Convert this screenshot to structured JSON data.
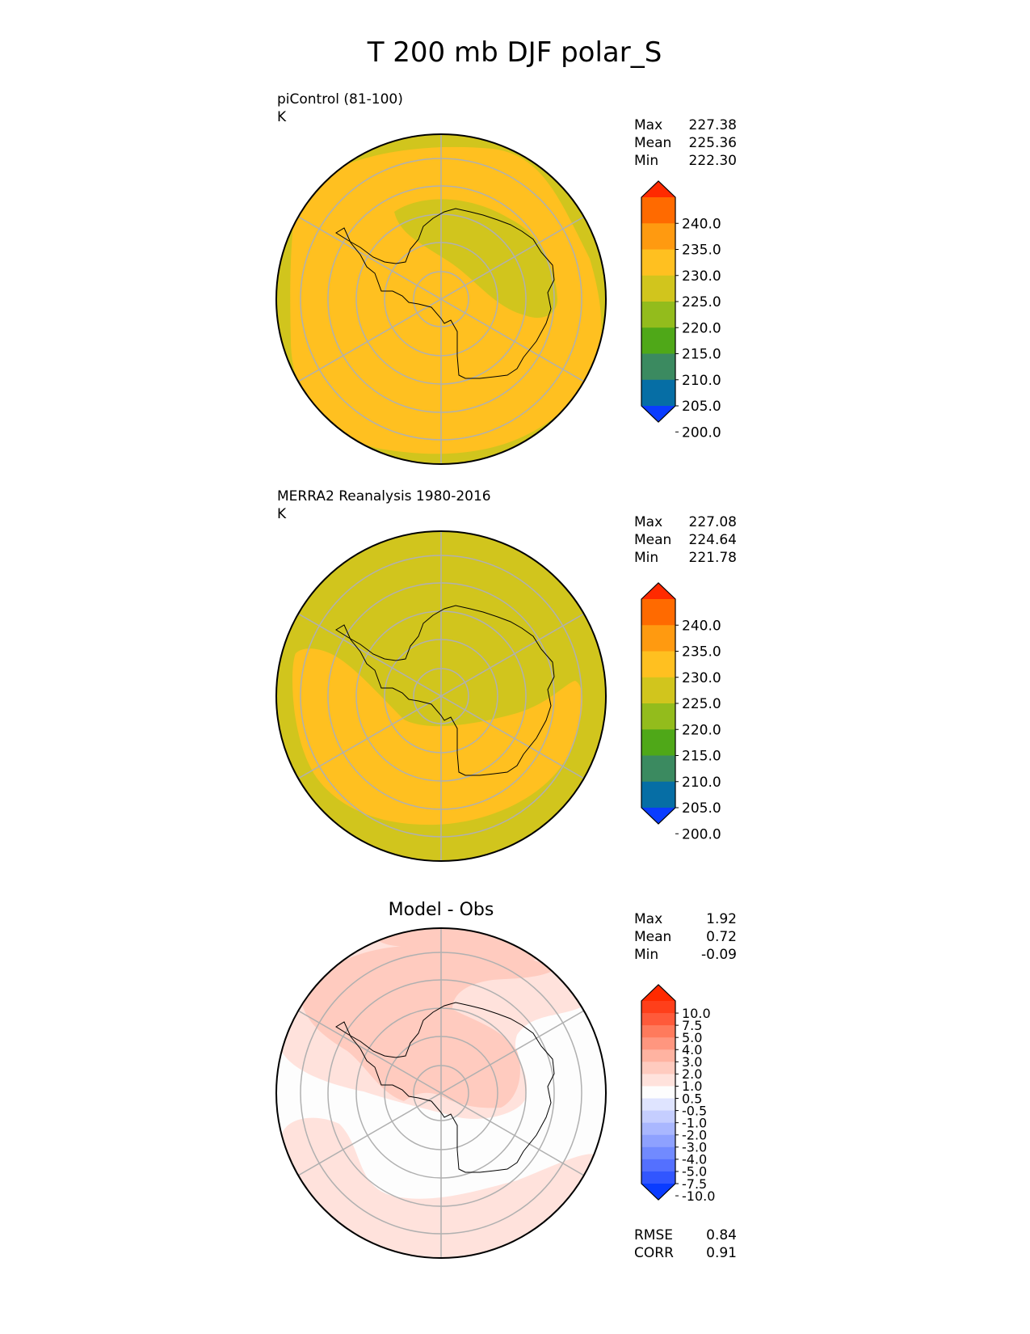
{
  "title": "T 200 mb DJF polar_S",
  "chart_data": [
    {
      "type": "heatmap",
      "projection": "south polar stereographic",
      "title": "piControl (81-100)",
      "units": "K",
      "stats": [
        {
          "label": "Max",
          "value": "227.38"
        },
        {
          "label": "Mean",
          "value": "225.36"
        },
        {
          "label": "Min",
          "value": "222.30"
        }
      ],
      "colorbar": {
        "extend": "both",
        "tick_labels": [
          "240.0",
          "235.0",
          "230.0",
          "225.0",
          "220.0",
          "215.0",
          "210.0",
          "205.0",
          "200.0"
        ],
        "colors": [
          "#ff2a00",
          "#ff6a00",
          "#ff9a10",
          "#ffc020",
          "#d1c51d",
          "#93bc1c",
          "#4fa818",
          "#3b8a60",
          "#066ea5",
          "#0a3cff"
        ]
      },
      "field_description": "Mostly 225-230 K (orange) over and around Antarctica; 220-225 K (olive) over East Antarctic plateau and in an outer ring near 40S"
    },
    {
      "type": "heatmap",
      "projection": "south polar stereographic",
      "title": "MERRA2 Reanalysis 1980-2016",
      "units": "K",
      "stats": [
        {
          "label": "Max",
          "value": "227.08"
        },
        {
          "label": "Mean",
          "value": "224.64"
        },
        {
          "label": "Min",
          "value": "221.78"
        }
      ],
      "colorbar": {
        "extend": "both",
        "tick_labels": [
          "240.0",
          "235.0",
          "230.0",
          "225.0",
          "220.0",
          "215.0",
          "210.0",
          "205.0",
          "200.0"
        ],
        "colors": [
          "#ff2a00",
          "#ff6a00",
          "#ff9a10",
          "#ffc020",
          "#d1c51d",
          "#93bc1c",
          "#4fa818",
          "#3b8a60",
          "#066ea5",
          "#0a3cff"
        ]
      },
      "field_description": "Mostly 220-225 K (olive); 225-230 K (orange) crescent over the Pacific/Ross Sea sector"
    },
    {
      "type": "heatmap",
      "projection": "south polar stereographic",
      "title": "Model - Obs",
      "units": "K",
      "stats": [
        {
          "label": "Max",
          "value": "1.92"
        },
        {
          "label": "Mean",
          "value": "0.72"
        },
        {
          "label": "Min",
          "value": "-0.09"
        }
      ],
      "metrics": [
        {
          "label": "RMSE",
          "value": "0.84"
        },
        {
          "label": "CORR",
          "value": "0.91"
        }
      ],
      "colorbar": {
        "extend": "both",
        "tick_labels": [
          "10.0",
          "7.5",
          "5.0",
          "4.0",
          "3.0",
          "2.0",
          "1.0",
          "0.5",
          "-0.5",
          "-1.0",
          "-2.0",
          "-3.0",
          "-4.0",
          "-5.0",
          "-7.5",
          "-10.0"
        ],
        "colors": [
          "#ff2a00",
          "#ff3f1a",
          "#ff5a3a",
          "#ff7a5c",
          "#ff967f",
          "#ffb3a1",
          "#ffcbbf",
          "#ffe2dc",
          "#fdfdfd",
          "#dfe4ff",
          "#c5ceff",
          "#a9b7ff",
          "#8ea1ff",
          "#718aff",
          "#5470ff",
          "#3256ff",
          "#0a3cff"
        ]
      },
      "field_description": "Differences mostly 0.5-1.0 K (light pink) with 1.0-2.0 K over West Antarctica and the Pacific sector; near zero (white) over parts of the Atlantic/Indian Ocean sectors"
    }
  ]
}
